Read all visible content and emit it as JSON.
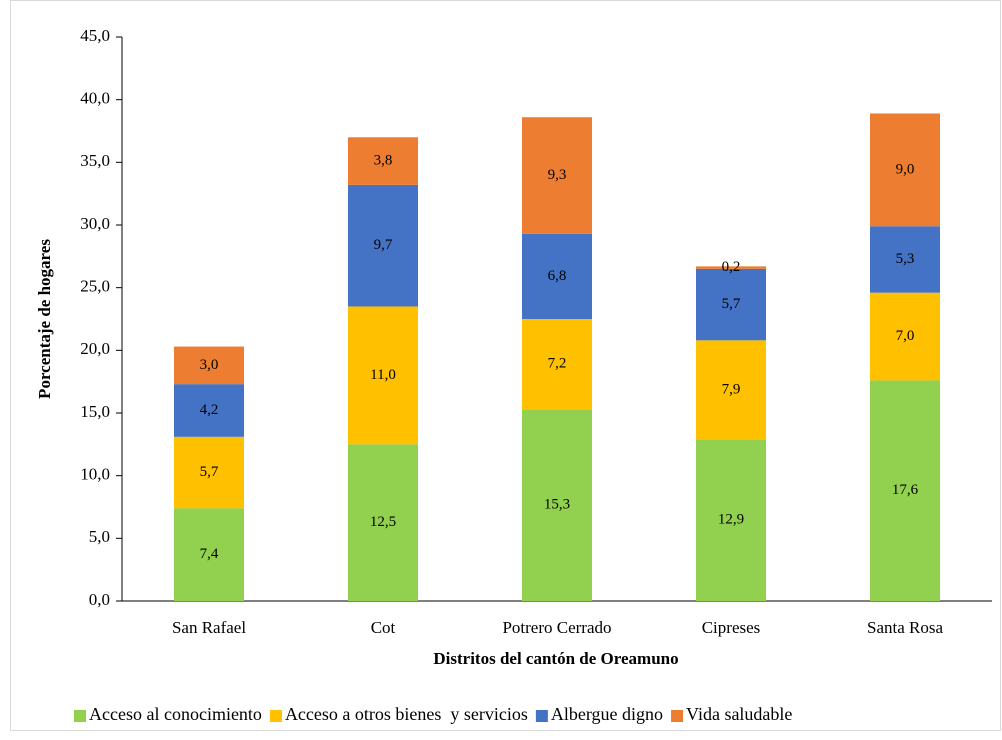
{
  "chart_data": {
    "type": "stacked_bar",
    "x_label": "Distritos  del cantón de Oreamuno",
    "y_label": "Porcentaje de hogares",
    "categories": [
      "San Rafael",
      "Cot",
      "Potrero Cerrado",
      "Cipreses",
      "Santa Rosa"
    ],
    "series": [
      {
        "name": "Acceso al conocimiento",
        "color": "#92d050",
        "values": [
          7.4,
          12.5,
          15.3,
          12.9,
          17.6
        ],
        "value_labels": [
          "7,4",
          "12,5",
          "15,3",
          "12,9",
          "17,6"
        ]
      },
      {
        "name": "Acceso a otros bienes  y servicios",
        "color": "#ffc000",
        "values": [
          5.7,
          11.0,
          7.2,
          7.9,
          7.0
        ],
        "value_labels": [
          "5,7",
          "11,0",
          "7,2",
          "7,9",
          "7,0"
        ]
      },
      {
        "name": "Albergue digno",
        "color": "#4472c4",
        "values": [
          4.2,
          9.7,
          6.8,
          5.7,
          5.3
        ],
        "value_labels": [
          "4,2",
          "9,7",
          "6,8",
          "5,7",
          "5,3"
        ]
      },
      {
        "name": "Vida saludable",
        "color": "#ed7d31",
        "values": [
          3.0,
          3.8,
          9.3,
          0.2,
          9.0
        ],
        "value_labels": [
          "3,0",
          "3,8",
          "9,3",
          "0,2",
          "9,0"
        ]
      }
    ],
    "ylim": [
      0,
      45
    ],
    "yticks": [
      {
        "value": 0,
        "label": "0,0"
      },
      {
        "value": 5,
        "label": "5,0"
      },
      {
        "value": 10,
        "label": "10,0"
      },
      {
        "value": 15,
        "label": "15,0"
      },
      {
        "value": 20,
        "label": "20,0"
      },
      {
        "value": 25,
        "label": "25,0"
      },
      {
        "value": 30,
        "label": "30,0"
      },
      {
        "value": 35,
        "label": "35,0"
      },
      {
        "value": 40,
        "label": "40,0"
      },
      {
        "value": 45,
        "label": "45,0"
      }
    ],
    "legend": "bottom"
  }
}
